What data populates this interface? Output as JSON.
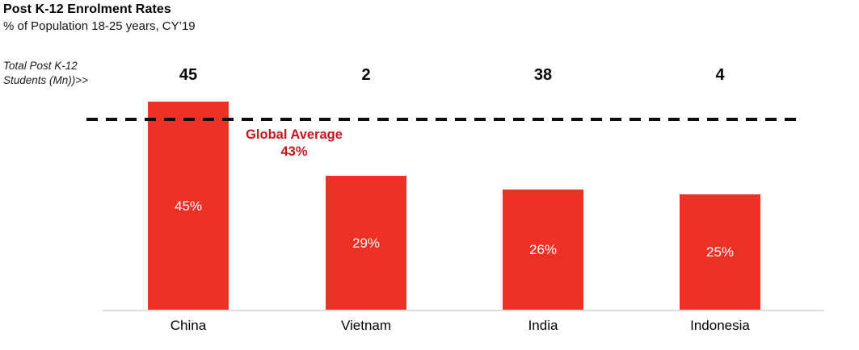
{
  "header": {
    "title": "Post K-12 Enrolment Rates",
    "subtitle": "% of Population 18-25 years, CY’19"
  },
  "annotation": {
    "line1": "Total Post K-12",
    "line2": "Students (Mn))>>"
  },
  "global_average": {
    "label": "Global Average",
    "value": "43%"
  },
  "colors": {
    "bar": "#ee3124",
    "average_text": "#c9161d",
    "dashed_line": "#0d0d0d",
    "axis_line": "#dcdcdc",
    "bar_label_text": "#ffffff"
  },
  "chart_data": {
    "type": "bar",
    "title": "Post K-12 Enrolment Rates",
    "subtitle": "% of Population 18-25 years, CY’19",
    "categories": [
      "China",
      "Vietnam",
      "India",
      "Indonesia"
    ],
    "series": [
      {
        "name": "Enrolment rate (% of population 18-25 years)",
        "values": [
          45,
          29,
          26,
          25
        ],
        "labels": [
          "45%",
          "29%",
          "26%",
          "25%"
        ]
      },
      {
        "name": "Total Post K-12 Students (Mn)",
        "values": [
          45,
          2,
          38,
          4
        ],
        "labels": [
          "45",
          "2",
          "38",
          "4"
        ]
      }
    ],
    "reference_line": {
      "label": "Global Average",
      "value": 43,
      "style": "dashed",
      "color": "#0d0d0d"
    },
    "ylim": [
      0,
      50
    ],
    "grid": false,
    "legend": false
  }
}
